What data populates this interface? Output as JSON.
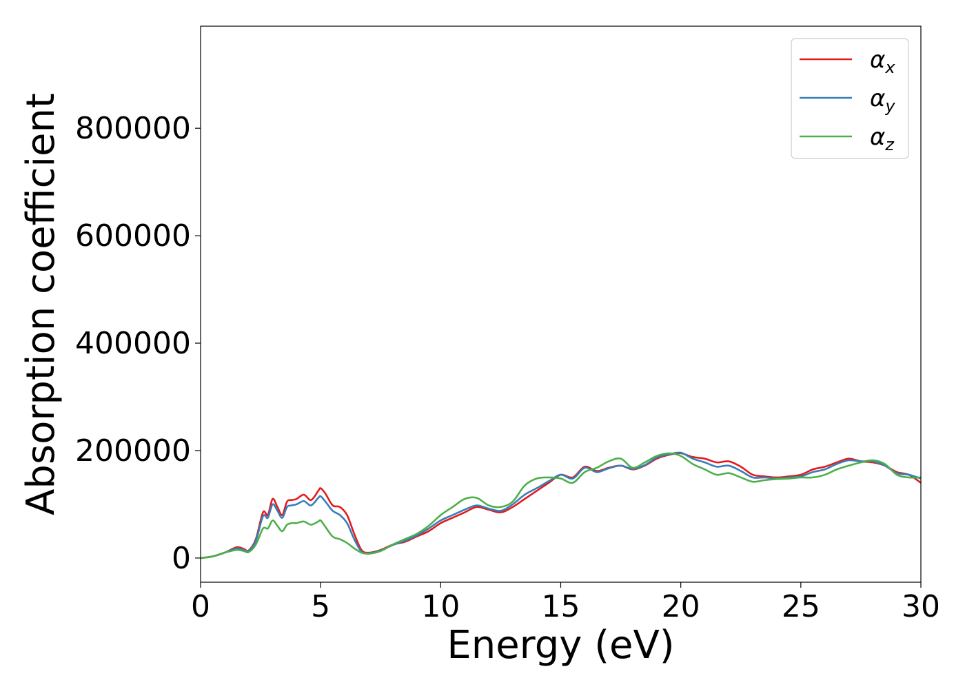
{
  "chart_data": {
    "type": "line",
    "title": "",
    "xlabel": "Energy (eV)",
    "ylabel": "Absorption coefficient",
    "xlim": [
      0,
      30
    ],
    "ylim": [
      -45000,
      990000
    ],
    "xticks": [
      0,
      5,
      10,
      15,
      20,
      25,
      30
    ],
    "yticks": [
      0,
      200000,
      400000,
      600000,
      800000
    ],
    "xtick_labels": [
      "0",
      "5",
      "10",
      "15",
      "20",
      "25",
      "30"
    ],
    "ytick_labels": [
      "0",
      "200000",
      "400000",
      "600000",
      "800000"
    ],
    "grid": false,
    "legend_position": "top-right",
    "x": [
      0,
      0.5,
      1,
      1.5,
      1.8,
      2,
      2.3,
      2.6,
      2.8,
      3.0,
      3.2,
      3.4,
      3.6,
      3.8,
      4.0,
      4.3,
      4.6,
      4.9,
      5.0,
      5.2,
      5.5,
      5.8,
      6.1,
      6.4,
      6.7,
      7.0,
      7.5,
      8.0,
      8.5,
      9.0,
      9.5,
      10,
      10.5,
      11,
      11.5,
      12,
      12.5,
      13,
      13.5,
      14,
      14.5,
      15,
      15.5,
      16,
      16.5,
      17,
      17.5,
      18,
      18.5,
      19,
      19.5,
      20,
      20.5,
      21,
      21.5,
      22,
      22.5,
      23,
      23.5,
      24,
      24.5,
      25,
      25.5,
      26,
      26.5,
      27,
      27.5,
      28,
      28.5,
      29,
      29.5,
      30
    ],
    "series": [
      {
        "name": "α",
        "subscript": "x",
        "color": "#e41a1c",
        "values": [
          0,
          3000,
          10000,
          20000,
          17000,
          14000,
          35000,
          85000,
          80000,
          110000,
          95000,
          80000,
          105000,
          108000,
          110000,
          118000,
          108000,
          125000,
          130000,
          120000,
          98000,
          95000,
          80000,
          45000,
          15000,
          10000,
          15000,
          25000,
          30000,
          40000,
          50000,
          65000,
          75000,
          85000,
          95000,
          90000,
          85000,
          95000,
          110000,
          125000,
          140000,
          155000,
          150000,
          170000,
          162000,
          168000,
          172000,
          165000,
          172000,
          185000,
          192000,
          195000,
          188000,
          185000,
          178000,
          180000,
          170000,
          155000,
          152000,
          150000,
          152000,
          155000,
          165000,
          170000,
          178000,
          185000,
          180000,
          178000,
          172000,
          160000,
          155000,
          140000
        ]
      },
      {
        "name": "α",
        "subscript": "y",
        "color": "#377eb8",
        "values": [
          0,
          3000,
          10000,
          18000,
          15000,
          13000,
          32000,
          78000,
          75000,
          100000,
          88000,
          75000,
          95000,
          98000,
          100000,
          106000,
          98000,
          112000,
          115000,
          105000,
          88000,
          80000,
          65000,
          35000,
          12000,
          9000,
          14000,
          24000,
          32000,
          42000,
          55000,
          70000,
          80000,
          90000,
          98000,
          92000,
          88000,
          100000,
          118000,
          130000,
          143000,
          155000,
          148000,
          168000,
          160000,
          167000,
          172000,
          166000,
          173000,
          187000,
          193000,
          196000,
          185000,
          178000,
          170000,
          172000,
          162000,
          150000,
          150000,
          148000,
          150000,
          152000,
          160000,
          165000,
          175000,
          182000,
          180000,
          180000,
          172000,
          158000,
          155000,
          148000
        ]
      },
      {
        "name": "α",
        "subscript": "z",
        "color": "#4daf4a",
        "values": [
          0,
          3000,
          10000,
          15000,
          13000,
          11000,
          25000,
          55000,
          55000,
          70000,
          60000,
          50000,
          62000,
          65000,
          65000,
          68000,
          62000,
          68000,
          70000,
          58000,
          40000,
          35000,
          28000,
          18000,
          10000,
          8000,
          13000,
          25000,
          35000,
          45000,
          60000,
          80000,
          95000,
          110000,
          112000,
          98000,
          95000,
          105000,
          135000,
          148000,
          150000,
          148000,
          140000,
          160000,
          168000,
          180000,
          185000,
          168000,
          178000,
          190000,
          195000,
          190000,
          175000,
          165000,
          155000,
          158000,
          150000,
          142000,
          145000,
          147000,
          148000,
          150000,
          150000,
          155000,
          165000,
          172000,
          178000,
          182000,
          175000,
          155000,
          150000,
          150000
        ]
      }
    ]
  }
}
